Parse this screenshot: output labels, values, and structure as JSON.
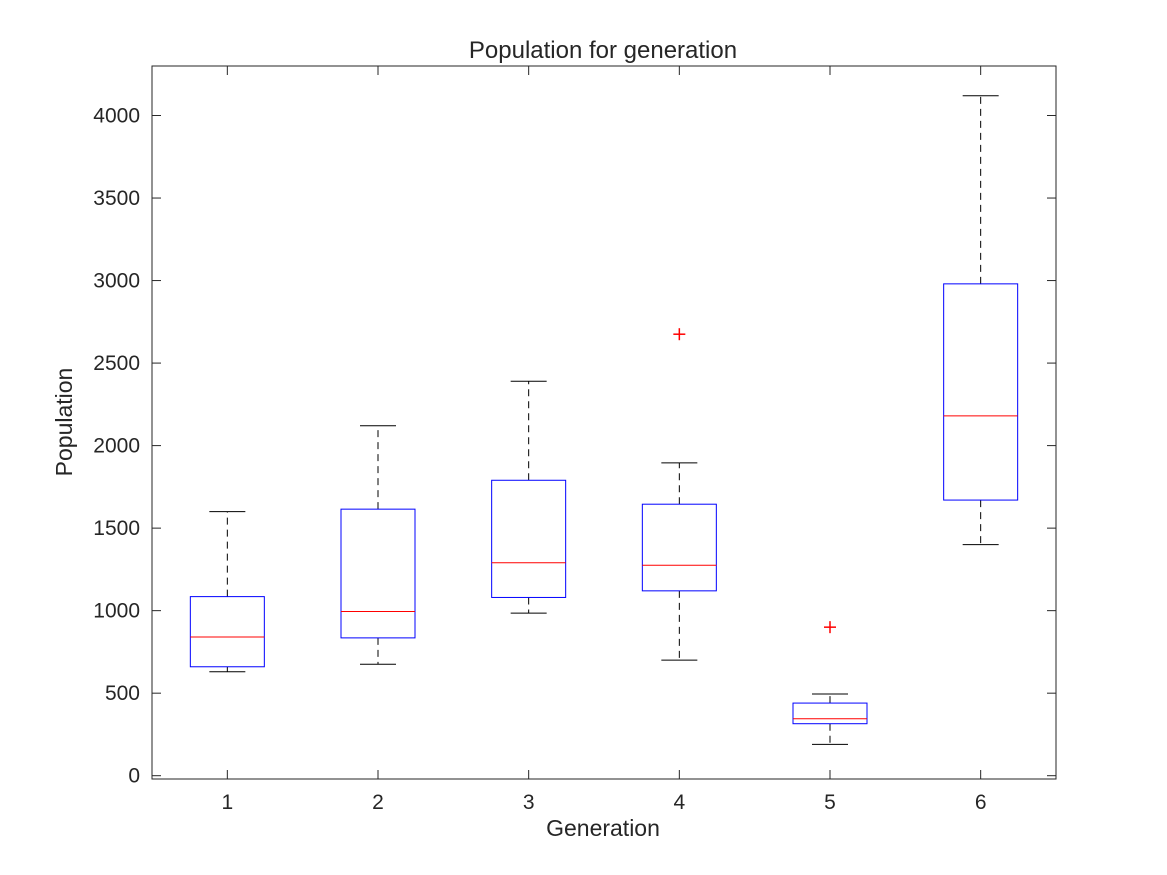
{
  "chart_data": {
    "type": "box",
    "title": "Population for generation",
    "xlabel": "Generation",
    "ylabel": "Population",
    "ylim": [
      -20,
      4300
    ],
    "yticks": [
      0,
      500,
      1000,
      1500,
      2000,
      2500,
      3000,
      3500,
      4000
    ],
    "ytick_labels": [
      "0",
      "500",
      "1000",
      "1500",
      "2000",
      "2500",
      "3000",
      "3500",
      "4000"
    ],
    "categories": [
      "1",
      "2",
      "3",
      "4",
      "5",
      "6"
    ],
    "boxes": [
      {
        "category": "1",
        "whisker_low": 630,
        "q1": 660,
        "median": 840,
        "q3": 1085,
        "whisker_high": 1600,
        "outliers": []
      },
      {
        "category": "2",
        "whisker_low": 675,
        "q1": 835,
        "median": 995,
        "q3": 1615,
        "whisker_high": 2120,
        "outliers": []
      },
      {
        "category": "3",
        "whisker_low": 985,
        "q1": 1080,
        "median": 1290,
        "q3": 1790,
        "whisker_high": 2390,
        "outliers": []
      },
      {
        "category": "4",
        "whisker_low": 700,
        "q1": 1120,
        "median": 1275,
        "q3": 1645,
        "whisker_high": 1895,
        "outliers": [
          2675
        ]
      },
      {
        "category": "5",
        "whisker_low": 190,
        "q1": 315,
        "median": 345,
        "q3": 440,
        "whisker_high": 495,
        "outliers": [
          900
        ]
      },
      {
        "category": "6",
        "whisker_low": 1400,
        "q1": 1670,
        "median": 2180,
        "q3": 2980,
        "whisker_high": 4120,
        "outliers": []
      }
    ],
    "colors": {
      "box": "#0000ff",
      "median": "#ff0000",
      "whisker": "#000000",
      "outlier": "#ff0000",
      "axis": "#262626"
    },
    "grid": false,
    "box_mark": "ticks on all four sides"
  }
}
